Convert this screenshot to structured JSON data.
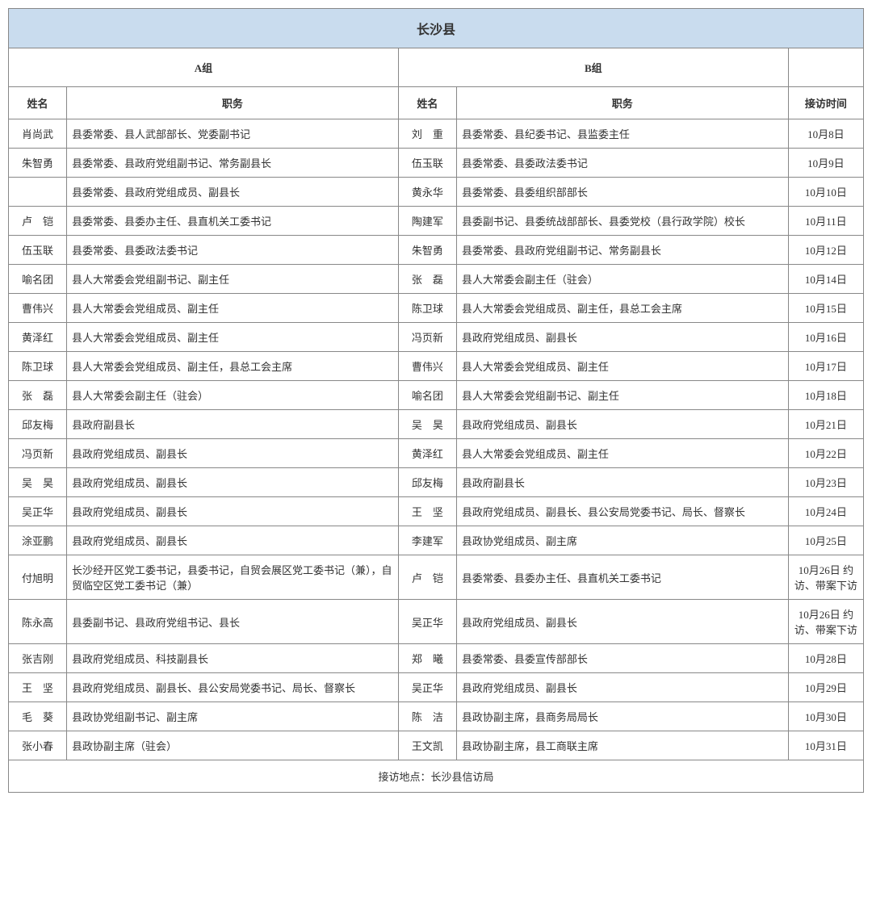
{
  "title": "长沙县",
  "groupA": "A组",
  "groupB": "B组",
  "headers": {
    "name": "姓名",
    "position": "职务",
    "date": "接访时间"
  },
  "footer": "接访地点：长沙县信访局",
  "rows": [
    {
      "aName": "肖尚武",
      "aPos": "县委常委、县人武部部长、党委副书记",
      "bName": "刘　重",
      "bPos": "县委常委、县纪委书记、县监委主任",
      "date": "10月8日"
    },
    {
      "aName": "朱智勇",
      "aPos": "县委常委、县政府党组副书记、常务副县长",
      "bName": "伍玉联",
      "bPos": "县委常委、县委政法委书记",
      "date": "10月9日"
    },
    {
      "aName": "",
      "aPos": "县委常委、县政府党组成员、副县长",
      "bName": "黄永华",
      "bPos": "县委常委、县委组织部部长",
      "date": "10月10日"
    },
    {
      "aName": "卢　铠",
      "aPos": "县委常委、县委办主任、县直机关工委书记",
      "bName": "陶建军",
      "bPos": "县委副书记、县委统战部部长、县委党校（县行政学院）校长",
      "date": "10月11日"
    },
    {
      "aName": "伍玉联",
      "aPos": "县委常委、县委政法委书记",
      "bName": "朱智勇",
      "bPos": "县委常委、县政府党组副书记、常务副县长",
      "date": "10月12日"
    },
    {
      "aName": "喻名团",
      "aPos": "县人大常委会党组副书记、副主任",
      "bName": "张　磊",
      "bPos": "县人大常委会副主任（驻会）",
      "date": "10月14日"
    },
    {
      "aName": "曹伟兴",
      "aPos": "县人大常委会党组成员、副主任",
      "bName": "陈卫球",
      "bPos": "县人大常委会党组成员、副主任，县总工会主席",
      "date": "10月15日"
    },
    {
      "aName": "黄泽红",
      "aPos": "县人大常委会党组成员、副主任",
      "bName": "冯页新",
      "bPos": "县政府党组成员、副县长",
      "date": "10月16日"
    },
    {
      "aName": "陈卫球",
      "aPos": "县人大常委会党组成员、副主任，县总工会主席",
      "bName": "曹伟兴",
      "bPos": "县人大常委会党组成员、副主任",
      "date": "10月17日"
    },
    {
      "aName": "张　磊",
      "aPos": "县人大常委会副主任（驻会）",
      "bName": "喻名团",
      "bPos": "县人大常委会党组副书记、副主任",
      "date": "10月18日"
    },
    {
      "aName": "邱友梅",
      "aPos": "县政府副县长",
      "bName": "吴　昊",
      "bPos": "县政府党组成员、副县长",
      "date": "10月21日"
    },
    {
      "aName": "冯页新",
      "aPos": "县政府党组成员、副县长",
      "bName": "黄泽红",
      "bPos": "县人大常委会党组成员、副主任",
      "date": "10月22日"
    },
    {
      "aName": "吴　昊",
      "aPos": "县政府党组成员、副县长",
      "bName": "邱友梅",
      "bPos": "县政府副县长",
      "date": "10月23日"
    },
    {
      "aName": "吴正华",
      "aPos": "县政府党组成员、副县长",
      "bName": "王　坚",
      "bPos": "县政府党组成员、副县长、县公安局党委书记、局长、督察长",
      "date": "10月24日"
    },
    {
      "aName": "涂亚鹏",
      "aPos": "县政府党组成员、副县长",
      "bName": "李建军",
      "bPos": "县政协党组成员、副主席",
      "date": "10月25日"
    },
    {
      "aName": "付旭明",
      "aPos": "长沙经开区党工委书记，县委书记，自贸会展区党工委书记（兼），自贸临空区党工委书记（兼）",
      "bName": "卢　铠",
      "bPos": "县委常委、县委办主任、县直机关工委书记",
      "date": "10月26日 约访、带案下访"
    },
    {
      "aName": "陈永高",
      "aPos": "县委副书记、县政府党组书记、县长",
      "bName": "吴正华",
      "bPos": "县政府党组成员、副县长",
      "date": "10月26日 约访、带案下访"
    },
    {
      "aName": "张吉刚",
      "aPos": "县政府党组成员、科技副县长",
      "bName": "郑　曦",
      "bPos": "县委常委、县委宣传部部长",
      "date": "10月28日"
    },
    {
      "aName": "王　坚",
      "aPos": "县政府党组成员、副县长、县公安局党委书记、局长、督察长",
      "bName": "吴正华",
      "bPos": "县政府党组成员、副县长",
      "date": "10月29日"
    },
    {
      "aName": "毛　葵",
      "aPos": "县政协党组副书记、副主席",
      "bName": "陈　洁",
      "bPos": "县政协副主席，县商务局局长",
      "date": "10月30日"
    },
    {
      "aName": "张小春",
      "aPos": "县政协副主席（驻会）",
      "bName": "王文凯",
      "bPos": "县政协副主席，县工商联主席",
      "date": "10月31日"
    }
  ]
}
